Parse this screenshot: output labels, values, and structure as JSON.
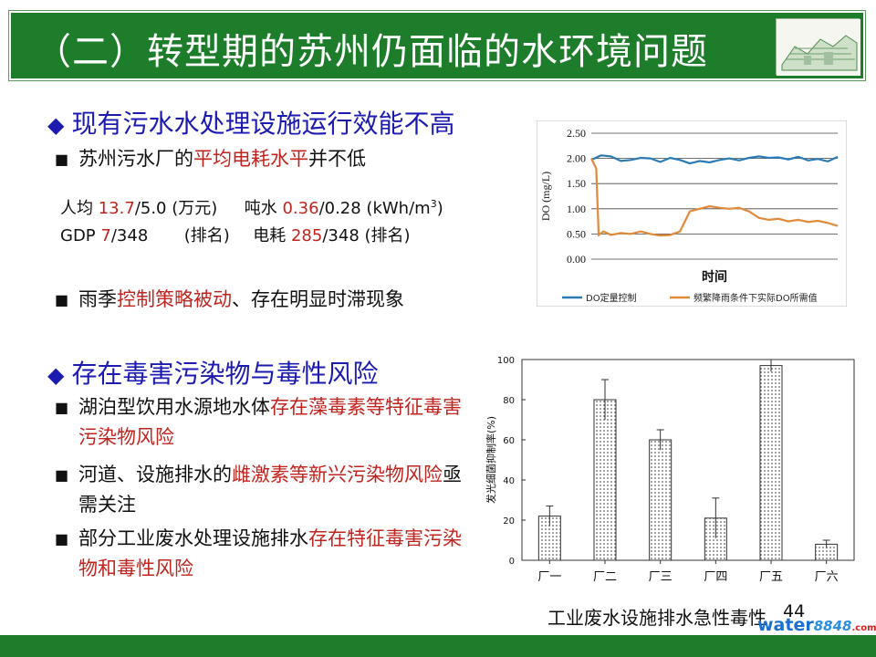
{
  "slide": {
    "title": "（二）转型期的苏州仍面临的水环境问题",
    "page_number": "44"
  },
  "section1": {
    "heading": "现有污水水处理设施运行效能不高",
    "bullet1_pre": "苏州污水厂的",
    "bullet1_red": "平均电耗水平",
    "bullet1_post": "并不低",
    "stats_row1": {
      "a_label": "人均 ",
      "a_red": "13.7",
      "a_rest": "/5.0 (万元)",
      "b_label": "吨水 ",
      "b_red": "0.36",
      "b_rest": "/0.28 (kWh/m",
      "b_sup": "3",
      "b_close": ")"
    },
    "stats_row2": {
      "a_label": "GDP ",
      "a_red": "7",
      "a_rest": "/348",
      "a_rank": "(排名)",
      "b_label": "电耗 ",
      "b_red": "285",
      "b_rest": "/348 (排名)"
    },
    "bullet2_pre": "雨季",
    "bullet2_red": "控制策略被动",
    "bullet2_post": "、存在明显时滞现象"
  },
  "section2": {
    "heading": "存在毒害污染物与毒性风险",
    "bullet1_pre": "湖泊型饮用水源地水体",
    "bullet1_red": "存在藻毒素等特征毒害污染物风险",
    "bullet2_pre": "河道、设施排水的",
    "bullet2_red": "雌激素等新兴污染物风险",
    "bullet2_post": "亟需关注",
    "bullet3_pre": "部分工业废水处理设施排水",
    "bullet3_red": "存在特征毒害污染物和毒性风险"
  },
  "toxicity_caption": "工业废水设施排水急性毒性",
  "watermark": {
    "a": "water",
    "b": "8848",
    "c": ".com"
  },
  "colors": {
    "title_bar": "#1d7d2b",
    "heading_blue": "#1b1bb0",
    "highlight_red": "#c0241e",
    "do_control": "#2a7bb5",
    "rain_do": "#e08a3a"
  },
  "chart_data": [
    {
      "type": "line",
      "ylabel": "DO (mg/L)",
      "xlabel": "时间",
      "ylim": [
        0,
        2.5
      ],
      "yticks": [
        "0.00",
        "0.50",
        "1.00",
        "1.50",
        "2.00",
        "2.50"
      ],
      "grid": true,
      "legend_position": "bottom",
      "series": [
        {
          "name": "DO定量控制",
          "color": "#2a7bb5",
          "x": [
            0,
            4,
            8,
            12,
            16,
            20,
            24,
            28,
            32,
            36,
            40,
            44,
            48,
            52,
            56,
            60,
            64,
            68,
            72,
            76,
            80,
            84,
            88,
            92,
            96,
            100
          ],
          "values": [
            1.97,
            2.06,
            2.04,
            1.95,
            1.97,
            2.01,
            2.0,
            1.93,
            2.01,
            1.97,
            1.9,
            1.95,
            1.92,
            1.97,
            2.0,
            1.96,
            2.01,
            2.04,
            2.01,
            2.02,
            1.98,
            2.03,
            1.96,
            1.99,
            1.94,
            2.03
          ]
        },
        {
          "name": "频繁降雨条件下实际DO所需值",
          "color": "#e08a3a",
          "x": [
            0,
            2,
            3,
            5,
            8,
            12,
            16,
            20,
            24,
            28,
            32,
            36,
            40,
            44,
            48,
            52,
            56,
            60,
            64,
            68,
            72,
            76,
            80,
            84,
            88,
            92,
            96,
            100
          ],
          "values": [
            2.0,
            1.8,
            0.48,
            0.55,
            0.48,
            0.52,
            0.5,
            0.55,
            0.5,
            0.47,
            0.48,
            0.55,
            0.95,
            1.0,
            1.05,
            1.02,
            1.0,
            1.02,
            0.95,
            0.82,
            0.78,
            0.8,
            0.75,
            0.78,
            0.74,
            0.76,
            0.72,
            0.66
          ]
        }
      ]
    },
    {
      "type": "bar",
      "ylabel": "发光细菌抑制率(%)",
      "categories": [
        "厂一",
        "厂二",
        "厂三",
        "厂四",
        "厂五",
        "厂六"
      ],
      "values": [
        22,
        80,
        60,
        21,
        97,
        8
      ],
      "errors": [
        5,
        10,
        5,
        10,
        3,
        2
      ],
      "ylim": [
        0,
        100
      ],
      "yticks": [
        "0",
        "20",
        "40",
        "60",
        "80",
        "100"
      ]
    }
  ]
}
